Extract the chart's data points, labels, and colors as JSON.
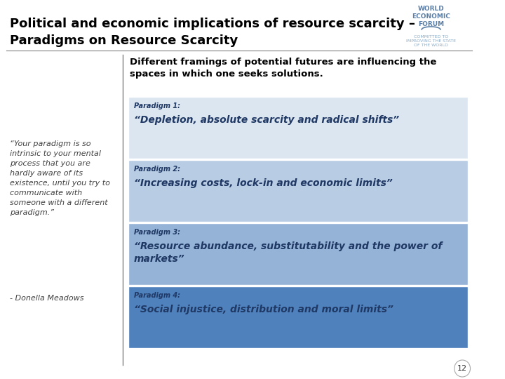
{
  "title_line1": "Political and economic implications of resource scarcity –",
  "title_line2": "Paradigms on Resource Scarcity",
  "subtitle": "Different framings of potential futures are influencing the\nspaces in which one seeks solutions.",
  "quote_text": "“Your paradigm is so\nintrinsic to your mental\nprocess that you are\nhardly aware of its\nexistence, until you try to\ncommunicate with\nsomeone with a different\nparadigm.”",
  "quote_author": "- Donella Meadows",
  "paradigms": [
    {
      "label": "Paradigm 1:",
      "text": "“Depletion, absolute scarcity and radical shifts”",
      "bg_color": "#dce6f1"
    },
    {
      "label": "Paradigm 2:",
      "text": "“Increasing costs, lock-in and economic limits”",
      "bg_color": "#b8cce4"
    },
    {
      "label": "Paradigm 3:",
      "text": "“Resource abundance, substitutability and the power of\nmarkets”",
      "bg_color": "#95b3d7"
    },
    {
      "label": "Paradigm 4:",
      "text": "“Social injustice, distribution and moral limits”",
      "bg_color": "#4f81bd"
    }
  ],
  "bg_color": "#ffffff",
  "title_color": "#000000",
  "subtitle_color": "#000000",
  "quote_color": "#404040",
  "page_number": "12",
  "divider_color": "#808080",
  "wef_line1": "WORLD",
  "wef_line2": "ECONOMIC",
  "wef_line3": "FORUM",
  "wef_sub": "COMMITTED TO\nIMPROVING THE STATE\nOF THE WORLD"
}
